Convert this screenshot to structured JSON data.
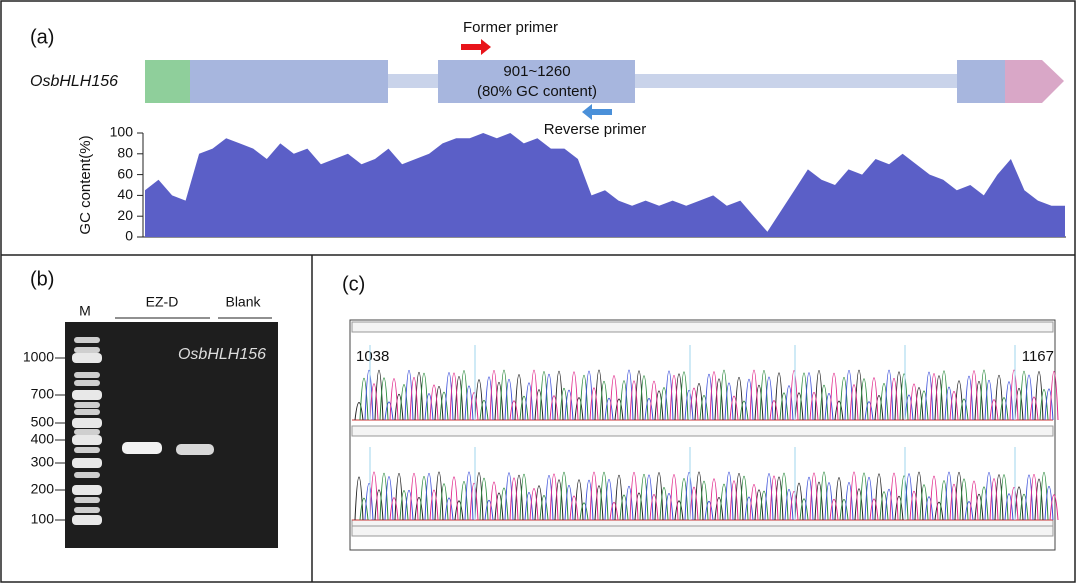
{
  "panel_a": {
    "label": "(a)",
    "gene": "OsbHLH156",
    "former_primer": "Former primer",
    "reverse_primer": "Reverse primer",
    "region": "901~1260",
    "region_note": "(80% GC content)",
    "gc_chart": {
      "type": "area",
      "ylabel": "GC content(%)",
      "ylim": [
        0,
        100
      ],
      "yticks": [
        0,
        20,
        40,
        60,
        80,
        100
      ],
      "color": "#5b5fc7",
      "values": [
        45,
        55,
        40,
        35,
        80,
        85,
        95,
        90,
        85,
        75,
        90,
        80,
        85,
        70,
        75,
        80,
        70,
        75,
        85,
        70,
        75,
        80,
        90,
        95,
        95,
        100,
        95,
        100,
        90,
        95,
        85,
        85,
        75,
        40,
        45,
        35,
        30,
        35,
        30,
        35,
        30,
        35,
        40,
        30,
        35,
        20,
        5,
        25,
        45,
        65,
        55,
        50,
        65,
        60,
        75,
        70,
        80,
        70,
        60,
        55,
        45,
        50,
        40,
        60,
        75,
        45,
        35,
        30,
        30
      ]
    }
  },
  "panel_b": {
    "label": "(b)",
    "ladder": "M",
    "sample": "EZ-D",
    "blank": "Blank",
    "gene": "OsbHLH156",
    "markers": [
      1000,
      700,
      500,
      400,
      300,
      200,
      100
    ]
  },
  "panel_c": {
    "label": "(c)",
    "start": "1038",
    "end": "1167"
  }
}
